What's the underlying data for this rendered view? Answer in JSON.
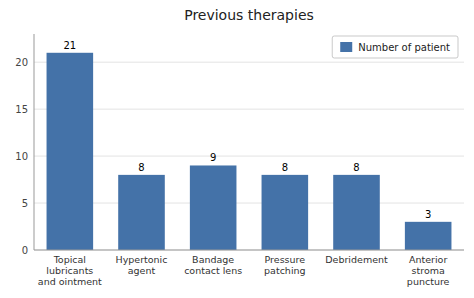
{
  "chart_data": {
    "type": "bar",
    "title": "Previous therapies",
    "categories": [
      "Topical\nlubricants\nand ointment",
      "Hypertonic\nagent",
      "Bandage\ncontact lens",
      "Pressure\npatching",
      "Debridement",
      "Anterior\nstroma\npuncture"
    ],
    "series": [
      {
        "name": "Number of patient",
        "color": "#4472a8",
        "values": [
          21,
          8,
          9,
          8,
          8,
          3
        ]
      }
    ],
    "ylim": [
      0,
      23
    ],
    "yticks": [
      0,
      5,
      10,
      15,
      20
    ],
    "grid": true,
    "legend": "upper right",
    "data_labels": true
  }
}
